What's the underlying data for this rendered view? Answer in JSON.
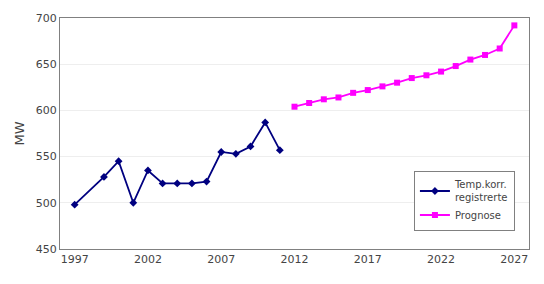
{
  "chart_data": {
    "type": "line",
    "ylabel": "MW",
    "series": [
      {
        "name": "Temp.korr.\nregistrerte",
        "color": "#000080",
        "marker": "diamond",
        "x": [
          1997,
          1999,
          2000,
          2001,
          2002,
          2003,
          2004,
          2005,
          2006,
          2007,
          2008,
          2009,
          2010,
          2011
        ],
        "values": [
          498,
          528,
          545,
          500,
          535,
          521,
          521,
          521,
          523,
          555,
          553,
          561,
          587,
          557
        ]
      },
      {
        "name": "Prognose",
        "color": "#FF00FF",
        "marker": "square",
        "x": [
          2012,
          2013,
          2014,
          2015,
          2016,
          2017,
          2018,
          2019,
          2020,
          2021,
          2022,
          2023,
          2024,
          2025,
          2026,
          2027
        ],
        "values": [
          604,
          608,
          612,
          614,
          619,
          622,
          626,
          630,
          635,
          638,
          642,
          648,
          655,
          660,
          667,
          692
        ]
      }
    ],
    "xlim": [
      1996,
      2028
    ],
    "xticks": [
      1997,
      2002,
      2007,
      2012,
      2017,
      2022,
      2027
    ],
    "ylim": [
      450,
      700
    ],
    "yticks": [
      450,
      500,
      550,
      600,
      650,
      700
    ],
    "grid": true,
    "legend": "lower right"
  }
}
